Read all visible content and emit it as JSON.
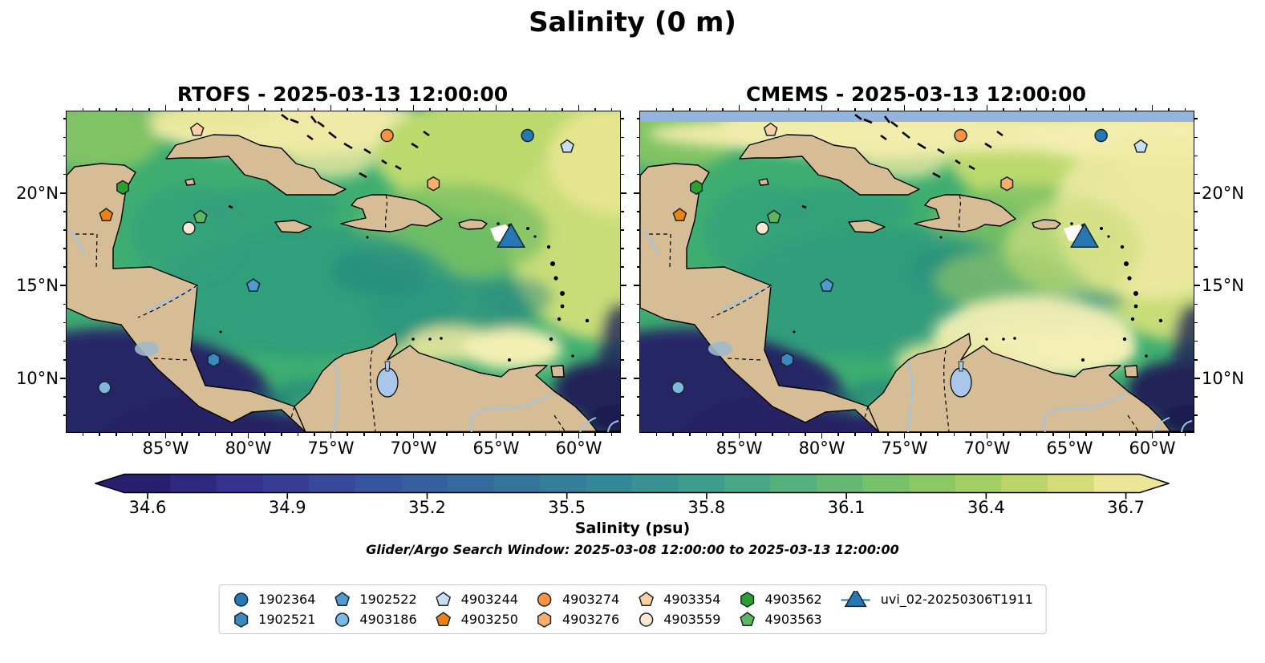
{
  "figure": {
    "title": "Salinity (0 m)",
    "subtitle": "Glider/Argo Search Window: 2025-03-08 12:00:00 to 2025-03-13 12:00:00"
  },
  "panels": [
    {
      "id": "rtofs",
      "title": "RTOFS - 2025-03-13 12:00:00"
    },
    {
      "id": "cmems",
      "title": "CMEMS - 2025-03-13 12:00:00"
    }
  ],
  "chart_data": {
    "type": "heatmap",
    "subtype": "geographic contourf comparison, 2 panels sharing one colorbar",
    "variable": "Salinity (0 m)",
    "panel_titles": [
      "RTOFS - 2025-03-13 12:00:00",
      "CMEMS - 2025-03-13 12:00:00"
    ],
    "projection_extent": {
      "lon": [
        -91,
        -57.5
      ],
      "lat": [
        7.1,
        24.4
      ]
    },
    "lon_ticks": {
      "major": [
        -85,
        -80,
        -75,
        -70,
        -65,
        -60
      ],
      "labels": [
        "85°W",
        "80°W",
        "75°W",
        "70°W",
        "65°W",
        "60°W"
      ],
      "minor_step": 1,
      "minor_range": [
        -90,
        -58
      ]
    },
    "lat_ticks": {
      "major": [
        20,
        15,
        10
      ],
      "labels": [
        "20°N",
        "15°N",
        "10°N"
      ],
      "minor_step": 1,
      "minor_range": [
        8,
        24
      ]
    },
    "colorbar": {
      "label": "Salinity (psu)",
      "tick_labels": [
        "34.6",
        "34.9",
        "35.2",
        "35.5",
        "35.8",
        "36.1",
        "36.4",
        "36.7"
      ],
      "tick_values": [
        34.6,
        34.9,
        35.2,
        35.5,
        35.8,
        36.1,
        36.4,
        36.7
      ],
      "vmin": 34.55,
      "vmax": 36.73,
      "n_bands": 22,
      "extend": "both",
      "palette": [
        [
          0.0,
          "#271a66"
        ],
        [
          0.1,
          "#342d89"
        ],
        [
          0.18,
          "#3a4398"
        ],
        [
          0.26,
          "#37589d"
        ],
        [
          0.34,
          "#346a9d"
        ],
        [
          0.42,
          "#327c9a"
        ],
        [
          0.5,
          "#368e96"
        ],
        [
          0.58,
          "#40a08c"
        ],
        [
          0.66,
          "#54b07d"
        ],
        [
          0.74,
          "#73bf6c"
        ],
        [
          0.82,
          "#99cc62"
        ],
        [
          0.9,
          "#c3d76c"
        ],
        [
          0.96,
          "#e4e186"
        ],
        [
          1.0,
          "#f5efae"
        ]
      ]
    },
    "markers": [
      {
        "id": "1902364",
        "shape": "circle",
        "color": "#2478b4",
        "lon": -63.1,
        "lat": 23.1
      },
      {
        "id": "1902521",
        "shape": "hexagon",
        "color": "#3a8ac1",
        "lon": -82.1,
        "lat": 11.0
      },
      {
        "id": "1902522",
        "shape": "pentagon",
        "color": "#509bcb",
        "lon": -79.7,
        "lat": 15.0
      },
      {
        "id": "4903186",
        "shape": "circle",
        "color": "#7db9de",
        "lon": -88.7,
        "lat": 9.5
      },
      {
        "id": "4903244",
        "shape": "pentagon",
        "color": "#c9def1",
        "lon": -60.7,
        "lat": 22.5
      },
      {
        "id": "4903250",
        "shape": "pentagon",
        "color": "#f0800f",
        "lon": -88.6,
        "lat": 18.8
      },
      {
        "id": "4903274",
        "shape": "circle",
        "color": "#fd9242",
        "lon": -71.6,
        "lat": 23.1
      },
      {
        "id": "4903276",
        "shape": "hexagon",
        "color": "#fdae6b",
        "lon": -68.8,
        "lat": 20.5
      },
      {
        "id": "4903354",
        "shape": "pentagon",
        "color": "#fdcfa2",
        "lon": -83.1,
        "lat": 23.4
      },
      {
        "id": "4903559",
        "shape": "circle",
        "color": "#fee7d0",
        "lon": -83.6,
        "lat": 18.1
      },
      {
        "id": "4903562",
        "shape": "hexagon",
        "color": "#2ca02c",
        "lon": -87.6,
        "lat": 20.3
      },
      {
        "id": "4903563",
        "shape": "pentagon",
        "color": "#5db75f",
        "lon": -82.9,
        "lat": 18.7
      },
      {
        "id": "uvi_02-20250306T1911",
        "shape": "triangle",
        "color": "#2677b2",
        "lon": -64.1,
        "lat": 17.5,
        "glider": true
      }
    ],
    "marker_edge_color": "#16242f",
    "land_color": "#d6bd96",
    "cmems_nan_strip_color": "#93b5dd",
    "lake_color": "#a9c7e8",
    "deep_low_salinity_color": "#262363"
  }
}
